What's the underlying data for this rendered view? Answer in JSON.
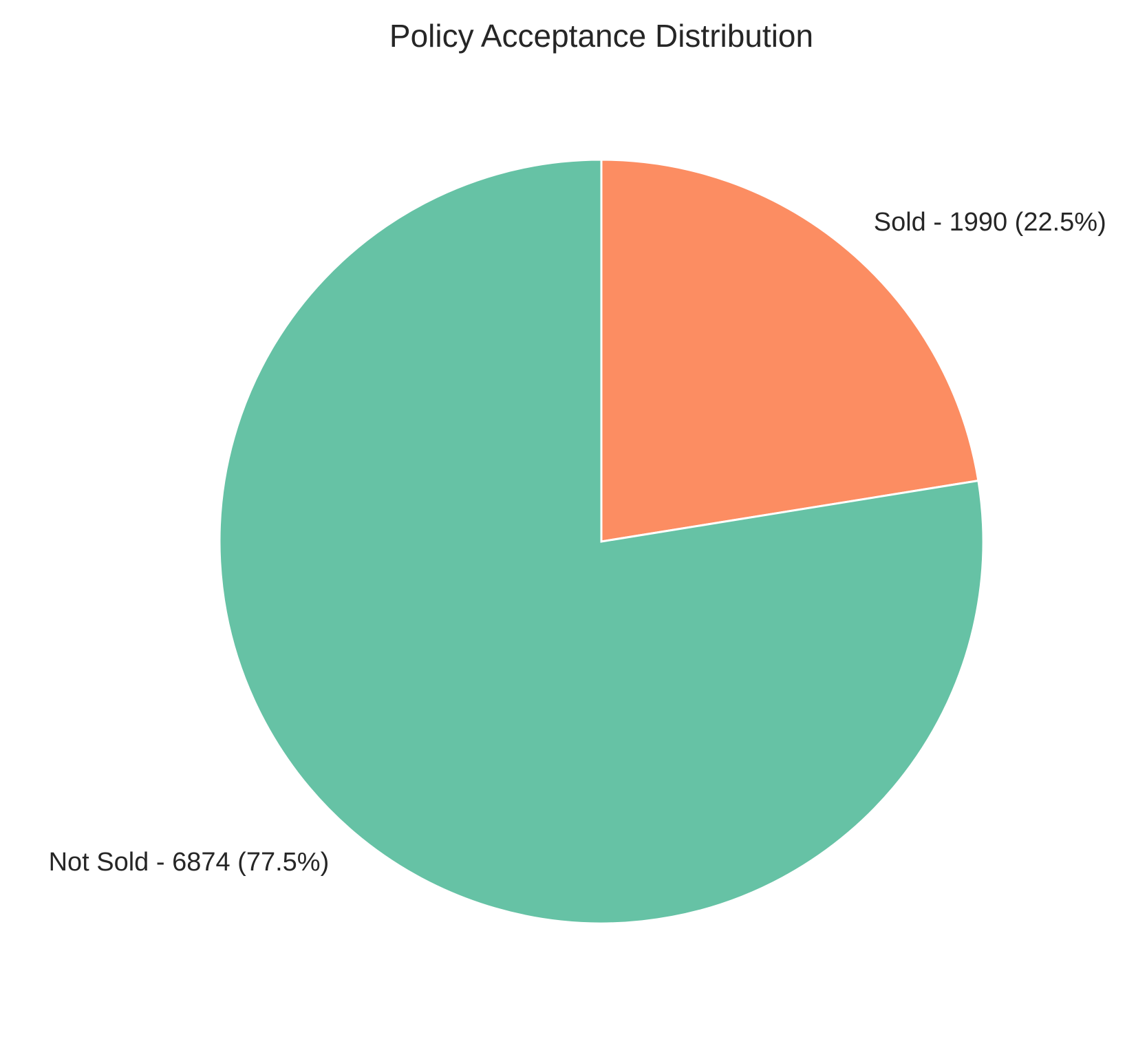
{
  "chart_data": {
    "type": "pie",
    "title": "Policy Acceptance Distribution",
    "start_angle_deg": 90,
    "direction": "clockwise",
    "slice_edge_color": "#ffffff",
    "slices": [
      {
        "name": "Sold",
        "value": 1990,
        "percent": 22.5,
        "label": "Sold - 1990 (22.5%)",
        "color": "#fc8d62"
      },
      {
        "name": "Not Sold",
        "value": 6874,
        "percent": 77.5,
        "label": "Not Sold - 6874 (77.5%)",
        "color": "#66c2a5"
      }
    ]
  }
}
